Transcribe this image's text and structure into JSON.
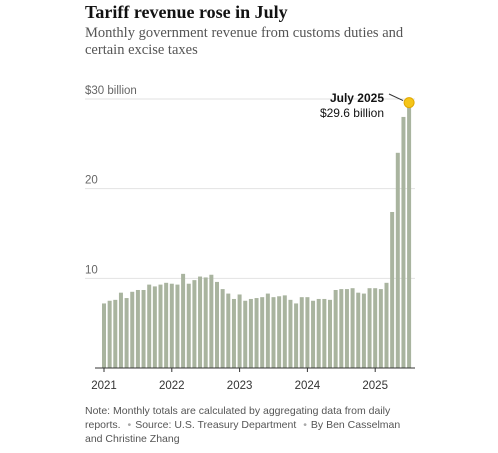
{
  "chart_data": {
    "type": "bar",
    "title": "Tariff revenue rose in July",
    "subtitle": "Monthly government revenue from customs duties and certain excise taxes",
    "categories": [
      "2021",
      null,
      null,
      null,
      null,
      null,
      null,
      null,
      null,
      null,
      null,
      null,
      "2022",
      null,
      null,
      null,
      null,
      null,
      null,
      null,
      null,
      null,
      null,
      null,
      "2023",
      null,
      null,
      null,
      null,
      null,
      null,
      null,
      null,
      null,
      null,
      null,
      "2024",
      null,
      null,
      null,
      null,
      null,
      null,
      null,
      null,
      null,
      null,
      null,
      "2025",
      null,
      null,
      null,
      null,
      null,
      null
    ],
    "values": [
      7.2,
      7.5,
      7.6,
      8.4,
      7.8,
      8.5,
      8.7,
      8.7,
      9.3,
      9.1,
      9.3,
      9.5,
      9.4,
      9.3,
      10.5,
      9.4,
      9.8,
      10.2,
      10.1,
      10.4,
      9.6,
      8.8,
      8.3,
      7.7,
      8.2,
      7.5,
      7.7,
      7.8,
      7.9,
      8.3,
      7.9,
      8.0,
      8.1,
      7.6,
      7.2,
      7.9,
      7.9,
      7.5,
      7.7,
      7.7,
      7.6,
      8.7,
      8.8,
      8.8,
      8.9,
      8.4,
      8.3,
      8.9,
      8.9,
      8.8,
      9.5,
      17.4,
      24.0,
      28.0,
      29.6
    ],
    "value_labels": [
      null,
      null,
      null,
      null,
      null,
      null,
      null,
      null,
      null,
      null,
      null,
      null,
      null,
      null,
      null,
      null,
      null,
      null,
      null,
      null,
      null,
      null,
      null,
      null,
      null,
      null,
      null,
      null,
      null,
      null,
      null,
      null,
      null,
      null,
      null,
      null,
      null,
      null,
      null,
      null,
      null,
      null,
      null,
      null,
      null,
      null,
      null,
      null,
      null,
      null,
      null,
      null,
      null,
      null,
      "$29.6 billion"
    ],
    "highlight": {
      "label": "July 2025",
      "color": "#f5c518"
    },
    "color": "#a9b49f",
    "ylim": [
      0,
      30
    ],
    "yticks": [
      {
        "value": 10,
        "label": "10"
      },
      {
        "value": 20,
        "label": "20"
      },
      {
        "value": 30,
        "label": "$30 billion"
      }
    ],
    "grid": true,
    "notes": [
      "Note: Monthly totals are calculated by aggregating data from daily reports.",
      "Source: U.S. Treasury Department",
      "By Ben Casselman and Christine Zhang"
    ]
  }
}
